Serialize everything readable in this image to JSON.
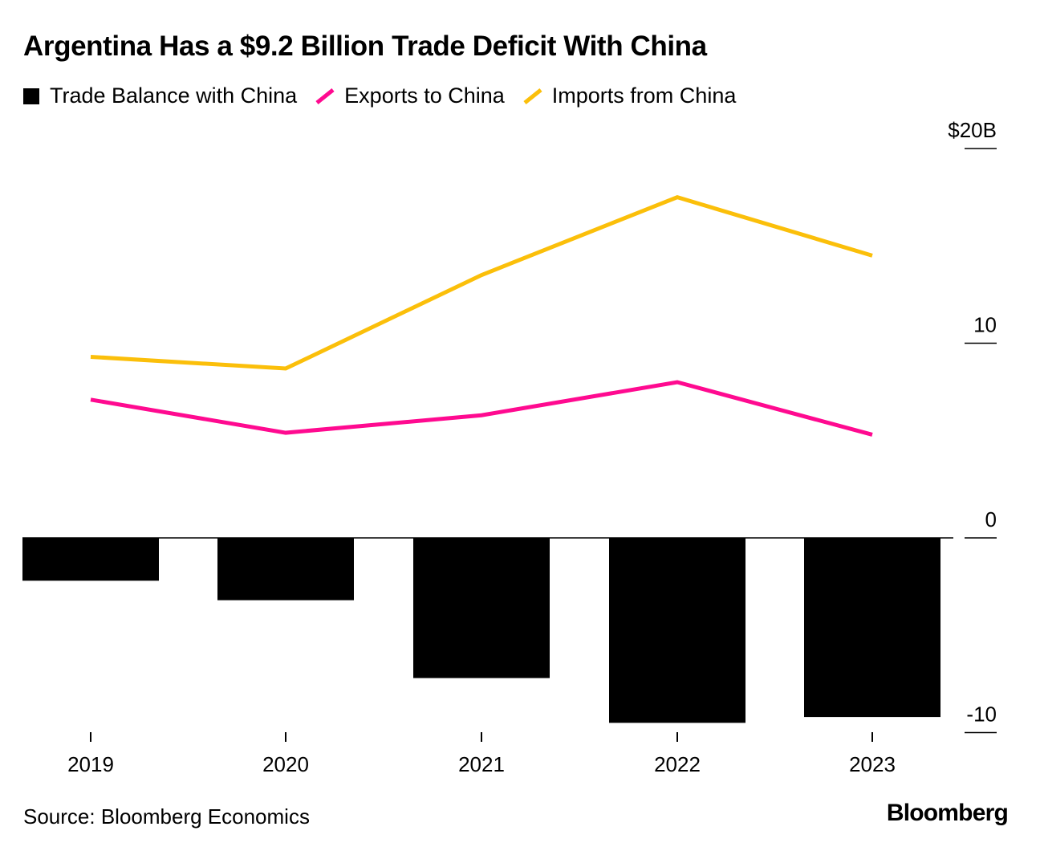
{
  "title": "Argentina Has a $9.2 Billion Trade Deficit With China",
  "source": "Source: Bloomberg Economics",
  "brand": "Bloomberg",
  "colors": {
    "balance": "#000000",
    "exports": "#ff0a90",
    "imports": "#fbbf0a"
  },
  "legend": [
    {
      "label": "Trade Balance with China",
      "swatch": "box",
      "color": "#000000"
    },
    {
      "label": "Exports to China",
      "swatch": "line",
      "color": "#ff0a90"
    },
    {
      "label": "Imports from China",
      "swatch": "line",
      "color": "#fbbf0a"
    }
  ],
  "chart_data": {
    "type": "bar",
    "title": "Argentina Has a $9.2 Billion Trade Deficit With China",
    "categories": [
      "2019",
      "2020",
      "2021",
      "2022",
      "2023"
    ],
    "series": [
      {
        "name": "Trade Balance with China",
        "type": "bar",
        "values": [
          -2.2,
          -3.2,
          -7.2,
          -9.5,
          -9.2
        ]
      },
      {
        "name": "Exports to China",
        "type": "line",
        "values": [
          7.1,
          5.4,
          6.3,
          8.0,
          5.3
        ]
      },
      {
        "name": "Imports from China",
        "type": "line",
        "values": [
          9.3,
          8.7,
          13.5,
          17.5,
          14.5
        ]
      }
    ],
    "ylim": [
      -10,
      20
    ],
    "yticks": [
      20,
      10,
      0,
      -10
    ],
    "ytick_labels": [
      "$20B",
      "10",
      "0",
      "-10"
    ],
    "y_axis_side": "right",
    "grid": false,
    "legend_position": "top-left"
  }
}
